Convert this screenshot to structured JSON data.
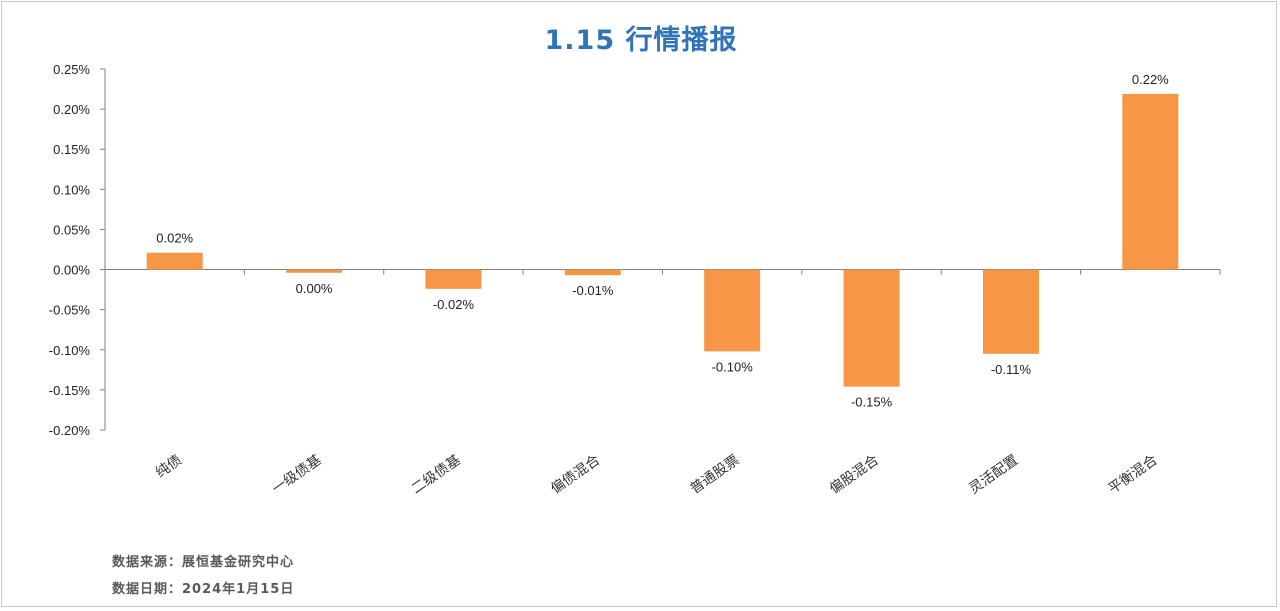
{
  "chart_data": {
    "type": "bar",
    "title": "1.15 行情播报",
    "categories": [
      "纯债",
      "一级债基",
      "二级债基",
      "偏债混合",
      "普通股票",
      "偏股混合",
      "灵活配置",
      "平衡混合"
    ],
    "values": [
      0.021,
      -0.004,
      -0.024,
      -0.007,
      -0.102,
      -0.146,
      -0.105,
      0.219
    ],
    "data_labels": [
      "0.02%",
      "0.00%",
      "-0.02%",
      "-0.01%",
      "-0.10%",
      "-0.15%",
      "-0.11%",
      "0.22%"
    ],
    "ylim": [
      -0.2,
      0.25
    ],
    "y_ticks": [
      0.25,
      0.2,
      0.15,
      0.1,
      0.05,
      0.0,
      -0.05,
      -0.1,
      -0.15,
      -0.2
    ],
    "y_tick_labels": [
      "0.25%",
      "0.20%",
      "0.15%",
      "0.10%",
      "0.05%",
      "0.00%",
      "-0.05%",
      "-0.10%",
      "-0.15%",
      "-0.20%"
    ],
    "bar_color": "#f79646",
    "grid": false,
    "legend": "none"
  },
  "footer": {
    "source": "数据来源：展恒基金研究中心",
    "date": "数据日期：2024年1月15日"
  }
}
